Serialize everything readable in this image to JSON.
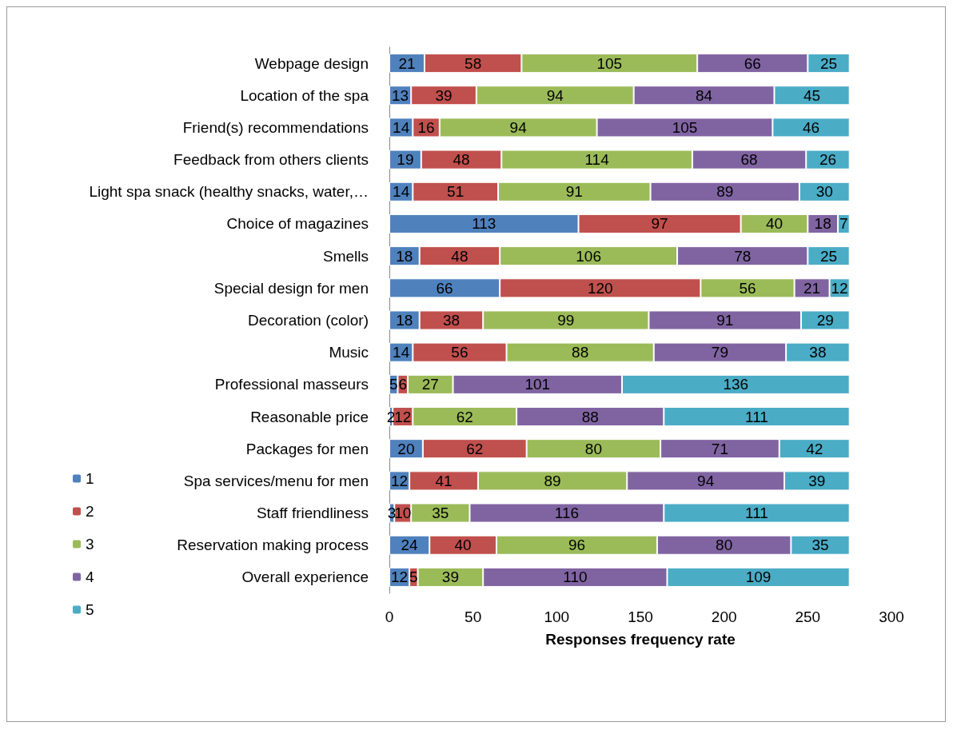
{
  "chart_data": {
    "type": "bar",
    "orientation": "horizontal",
    "stacked": true,
    "data_labels": true,
    "grid": false,
    "legend": "left",
    "xlabel": "Responses frequency rate",
    "categories": [
      "Webpage design",
      "Location of the spa",
      "Friend(s) recommendations",
      "Feedback from others clients",
      "Light spa snack (healthy snacks, water,…",
      "Choice of magazines",
      "Smells",
      "Special design for men",
      "Decoration (color)",
      "Music",
      "Professional masseurs",
      "Reasonable price",
      "Packages for men",
      "Spa services/menu for men",
      "Staff friendliness",
      "Reservation making process",
      "Overall experience"
    ],
    "xlim": [
      0,
      300
    ],
    "xticks": [
      0,
      50,
      100,
      150,
      200,
      250,
      300
    ],
    "series": [
      {
        "name": "1",
        "color": "#4f81bd",
        "values": [
          21,
          13,
          14,
          19,
          14,
          113,
          18,
          66,
          18,
          14,
          5,
          2,
          20,
          12,
          3,
          24,
          12
        ]
      },
      {
        "name": "2",
        "color": "#c0504d",
        "values": [
          58,
          39,
          16,
          48,
          51,
          97,
          48,
          120,
          38,
          56,
          6,
          12,
          62,
          41,
          10,
          40,
          5
        ]
      },
      {
        "name": "3",
        "color": "#9bbb59",
        "values": [
          105,
          94,
          94,
          114,
          91,
          40,
          106,
          56,
          99,
          88,
          27,
          62,
          80,
          89,
          35,
          96,
          39
        ]
      },
      {
        "name": "4",
        "color": "#8064a2",
        "values": [
          66,
          84,
          105,
          68,
          89,
          18,
          78,
          21,
          91,
          79,
          101,
          88,
          71,
          94,
          116,
          80,
          110
        ]
      },
      {
        "name": "5",
        "color": "#4bacc6",
        "values": [
          25,
          45,
          46,
          26,
          30,
          7,
          25,
          12,
          29,
          38,
          136,
          111,
          42,
          39,
          111,
          35,
          109
        ]
      }
    ]
  }
}
